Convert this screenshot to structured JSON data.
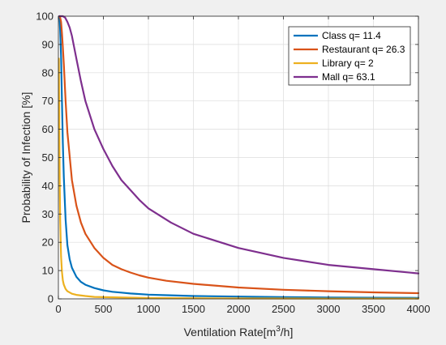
{
  "chart_data": {
    "type": "line",
    "title": "",
    "xlabel": "Ventilation Rate[m³/h]",
    "xlabel_parts": {
      "prefix": "Ventilation Rate[m",
      "sup": "3",
      "suffix": "/h]"
    },
    "ylabel": "Probability of Infection [%]",
    "xlim": [
      0,
      4000
    ],
    "ylim": [
      0,
      100
    ],
    "x_ticks": [
      0,
      500,
      1000,
      1500,
      2000,
      2500,
      3000,
      3500,
      4000
    ],
    "y_ticks": [
      0,
      10,
      20,
      30,
      40,
      50,
      60,
      70,
      80,
      90,
      100
    ],
    "grid": true,
    "legend_position": "top-right",
    "series": [
      {
        "name": "Class q= 11.4",
        "color": "#0072BD",
        "x": [
          10,
          15,
          20,
          30,
          40,
          50,
          60,
          80,
          100,
          125,
          150,
          200,
          250,
          300,
          400,
          500,
          600,
          700,
          800,
          1000,
          1200,
          1500,
          2000,
          2500,
          3000,
          3500,
          4000
        ],
        "y": [
          100,
          98,
          95,
          86,
          70,
          55,
          43,
          28,
          19,
          14,
          11,
          7.8,
          6,
          5,
          3.8,
          3,
          2.5,
          2.2,
          1.9,
          1.5,
          1.3,
          1.0,
          0.8,
          0.6,
          0.5,
          0.4,
          0.35
        ]
      },
      {
        "name": "Restaurant q= 26.3",
        "color": "#D95319",
        "x": [
          10,
          20,
          30,
          40,
          50,
          60,
          80,
          100,
          150,
          200,
          250,
          300,
          400,
          500,
          600,
          700,
          800,
          900,
          1000,
          1200,
          1500,
          2000,
          2500,
          3000,
          3500,
          4000
        ],
        "y": [
          100,
          99.5,
          98,
          94,
          89,
          83,
          70,
          59,
          42,
          33,
          27,
          23,
          18,
          14.5,
          12,
          10.5,
          9.3,
          8.3,
          7.5,
          6.4,
          5.3,
          4.0,
          3.2,
          2.7,
          2.3,
          2.0
        ]
      },
      {
        "name": "Library q= 2",
        "color": "#EDB120",
        "x": [
          5,
          10,
          15,
          20,
          30,
          40,
          50,
          60,
          80,
          100,
          150,
          200,
          300,
          400,
          500,
          1000,
          2000,
          3000,
          4000
        ],
        "y": [
          85,
          60,
          40,
          28,
          15,
          9.5,
          6.5,
          5,
          3.5,
          2.7,
          1.8,
          1.4,
          1.0,
          0.7,
          0.6,
          0.3,
          0.15,
          0.1,
          0.08
        ]
      },
      {
        "name": "Mall q= 63.1",
        "color": "#7E2F8E",
        "x": [
          10,
          50,
          75,
          100,
          125,
          150,
          200,
          250,
          300,
          400,
          500,
          600,
          700,
          800,
          900,
          1000,
          1250,
          1500,
          2000,
          2500,
          3000,
          3500,
          4000
        ],
        "y": [
          100,
          100,
          99.5,
          98,
          96,
          93,
          85,
          77,
          70,
          60,
          53,
          47,
          42,
          38.5,
          35,
          32,
          27,
          23,
          18,
          14.5,
          12,
          10.5,
          9.0
        ]
      }
    ]
  }
}
